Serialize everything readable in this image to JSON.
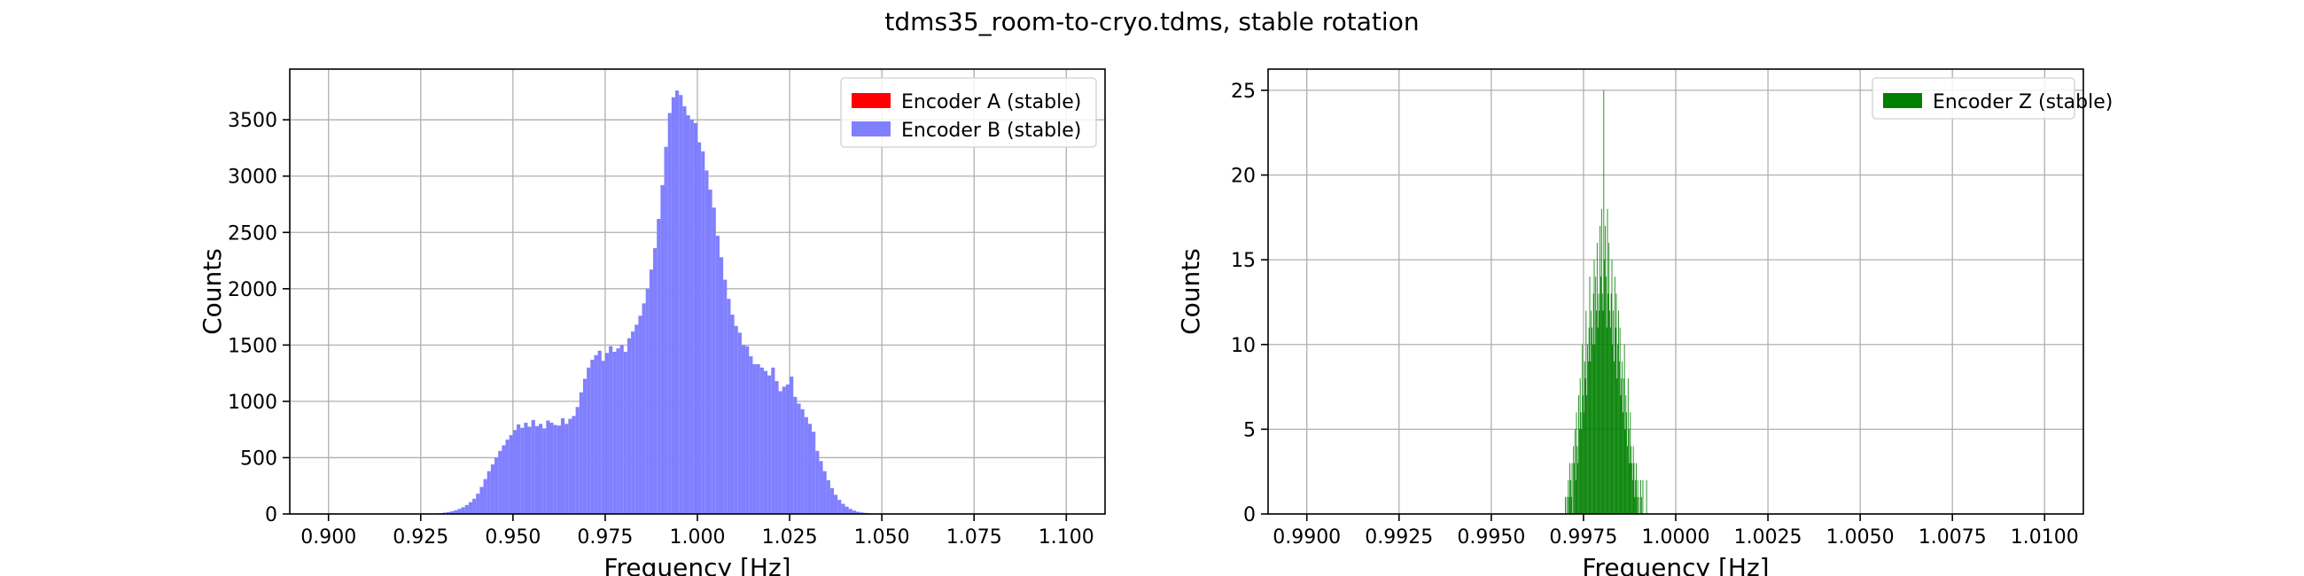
{
  "figure": {
    "title": "tdms35_room-to-cryo.tdms, stable rotation"
  },
  "chart_data": [
    {
      "type": "bar",
      "subtype": "histogram",
      "xlabel": "Frequency [Hz]",
      "ylabel": "Counts",
      "xlim": [
        0.8895,
        1.1105
      ],
      "ylim": [
        0,
        3950
      ],
      "xticks": [
        0.9,
        0.925,
        0.95,
        0.975,
        1.0,
        1.025,
        1.05,
        1.075,
        1.1
      ],
      "xtick_labels": [
        "0.900",
        "0.925",
        "0.950",
        "0.975",
        "1.000",
        "1.025",
        "1.050",
        "1.075",
        "1.100"
      ],
      "yticks": [
        0,
        500,
        1000,
        1500,
        2000,
        2500,
        3000,
        3500
      ],
      "ytick_labels": [
        "0",
        "500",
        "1000",
        "1500",
        "2000",
        "2500",
        "3000",
        "3500"
      ],
      "grid": true,
      "legend_position": "top-right",
      "series": [
        {
          "name": "Encoder A (stable)",
          "color": "#ff0000",
          "bin_width": 0.001,
          "bin_start": 0.9,
          "values": []
        },
        {
          "name": "Encoder B (stable)",
          "color": "#8080ff",
          "bin_width": 0.001,
          "bin_start": 0.9,
          "values": [
            0,
            0,
            0,
            0,
            0,
            0,
            0,
            0,
            0,
            0,
            0,
            0,
            0,
            0,
            0,
            0,
            0,
            0,
            0,
            0,
            0,
            0,
            0,
            0,
            0,
            0,
            0,
            0,
            3,
            5,
            8,
            12,
            17,
            24,
            33,
            45,
            60,
            80,
            105,
            135,
            180,
            240,
            310,
            380,
            440,
            500,
            560,
            610,
            660,
            700,
            745,
            795,
            765,
            810,
            775,
            835,
            780,
            800,
            760,
            830,
            810,
            790,
            785,
            850,
            800,
            845,
            870,
            950,
            1080,
            1200,
            1300,
            1370,
            1410,
            1450,
            1360,
            1430,
            1490,
            1440,
            1470,
            1500,
            1440,
            1560,
            1620,
            1680,
            1760,
            1870,
            2000,
            2170,
            2360,
            2620,
            2920,
            3260,
            3560,
            3700,
            3760,
            3720,
            3620,
            3540,
            3500,
            3470,
            3300,
            3220,
            3050,
            2880,
            2720,
            2470,
            2280,
            2080,
            1910,
            1770,
            1670,
            1610,
            1500,
            1490,
            1400,
            1330,
            1330,
            1300,
            1270,
            1230,
            1300,
            1180,
            1090,
            1130,
            1150,
            1220,
            1040,
            980,
            930,
            860,
            800,
            730,
            560,
            470,
            380,
            300,
            230,
            170,
            125,
            90,
            65,
            45,
            30,
            20,
            14,
            10,
            7,
            5,
            4,
            3,
            2,
            2,
            1,
            1,
            0,
            0,
            0,
            0,
            0,
            0,
            0,
            0,
            0,
            0,
            0,
            0,
            0,
            0,
            0,
            0,
            0,
            0,
            0,
            0,
            0,
            0,
            0,
            0,
            0,
            0,
            0,
            0,
            0,
            0,
            0,
            0
          ]
        }
      ]
    },
    {
      "type": "bar",
      "subtype": "histogram",
      "xlabel": "Frequency [Hz]",
      "ylabel": "Counts",
      "xlim": [
        0.98895,
        1.01105
      ],
      "ylim": [
        0,
        26.25
      ],
      "xticks": [
        0.99,
        0.9925,
        0.995,
        0.9975,
        1.0,
        1.0025,
        1.005,
        1.0075,
        1.01
      ],
      "xtick_labels": [
        "0.9900",
        "0.9925",
        "0.9950",
        "0.9975",
        "1.0000",
        "1.0025",
        "1.0050",
        "1.0075",
        "1.0100"
      ],
      "yticks": [
        0,
        5,
        10,
        15,
        20,
        25
      ],
      "ytick_labels": [
        "0",
        "5",
        "10",
        "15",
        "20",
        "25"
      ],
      "grid": true,
      "legend_position": "top-right",
      "series": [
        {
          "name": "Encoder Z (stable)",
          "color": "#008000",
          "bin_width": 2e-05,
          "bin_start": 0.997,
          "values": [
            1,
            0,
            1,
            0,
            2,
            1,
            3,
            2,
            1,
            3,
            0,
            4,
            3,
            5,
            2,
            6,
            4,
            3,
            7,
            5,
            8,
            6,
            5,
            10,
            7,
            6,
            9,
            8,
            12,
            7,
            10,
            9,
            11,
            14,
            9,
            12,
            11,
            10,
            13,
            15,
            10,
            14,
            12,
            16,
            11,
            13,
            12,
            17,
            14,
            18,
            13,
            12,
            25,
            15,
            17,
            14,
            11,
            18,
            13,
            16,
            12,
            11,
            13,
            15,
            10,
            12,
            9,
            14,
            11,
            13,
            8,
            10,
            12,
            9,
            11,
            7,
            8,
            9,
            6,
            8,
            10,
            5,
            7,
            6,
            4,
            8,
            5,
            3,
            6,
            4,
            3,
            2,
            4,
            3,
            1,
            2,
            3,
            1,
            2,
            0,
            1,
            0,
            2,
            1,
            0,
            2,
            0,
            0,
            0,
            0,
            2
          ]
        }
      ]
    }
  ]
}
